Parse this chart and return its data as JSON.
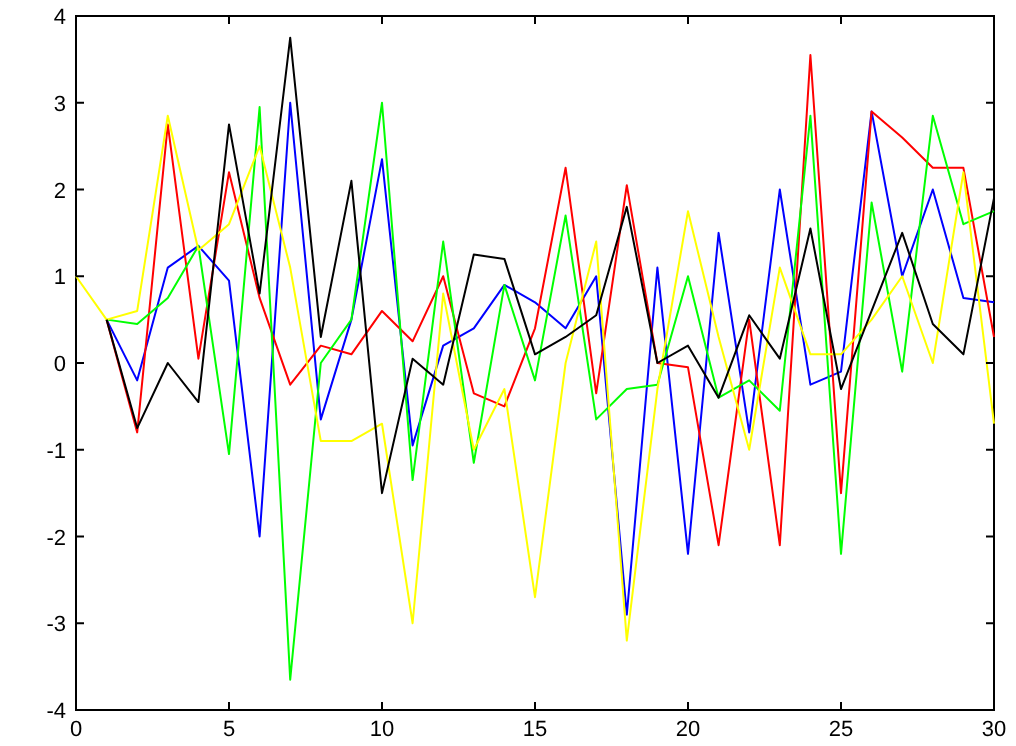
{
  "chart_data": {
    "type": "line",
    "x": [
      1,
      2,
      3,
      4,
      5,
      6,
      7,
      8,
      9,
      10,
      11,
      12,
      13,
      14,
      15,
      16,
      17,
      18,
      19,
      20,
      21,
      22,
      23,
      24,
      25,
      26,
      27,
      28,
      29,
      30
    ],
    "series": [
      {
        "color": "#0000ff",
        "values": [
          0.5,
          -0.2,
          1.1,
          1.35,
          0.95,
          -2.0,
          3.0,
          -0.65,
          0.5,
          2.35,
          -0.95,
          0.2,
          0.4,
          0.9,
          0.7,
          0.4,
          1.0,
          -2.9,
          1.1,
          -2.2,
          1.5,
          -0.8,
          2.0,
          -0.25,
          -0.1,
          2.9,
          1.0,
          2.0,
          0.75,
          0.7
        ]
      },
      {
        "color": "#ff0000",
        "values": [
          0.5,
          -0.8,
          2.75,
          0.05,
          2.2,
          0.75,
          -0.25,
          0.2,
          0.1,
          0.6,
          0.25,
          1.0,
          -0.35,
          -0.5,
          0.4,
          2.25,
          -0.35,
          2.05,
          0.0,
          -0.05,
          -2.1,
          0.5,
          -2.1,
          3.55,
          -1.5,
          2.9,
          2.6,
          2.25,
          2.25,
          0.3
        ]
      },
      {
        "color": "#00ff00",
        "values": [
          0.5,
          0.45,
          0.75,
          1.35,
          -1.05,
          2.95,
          -3.65,
          0.0,
          0.5,
          3.0,
          -1.35,
          1.4,
          -1.15,
          0.9,
          -0.2,
          1.7,
          -0.65,
          -0.3,
          -0.25,
          1.0,
          -0.4,
          -0.2,
          -0.55,
          2.85,
          -2.2,
          1.85,
          -0.1,
          2.85,
          1.6,
          1.75
        ]
      },
      {
        "color": "#ffff00",
        "x": [
          0,
          1,
          2,
          3,
          4,
          5,
          6,
          7,
          8,
          9,
          10,
          11,
          12,
          13,
          14,
          15,
          16,
          17,
          18,
          19,
          20,
          21,
          22,
          23,
          24,
          25,
          26,
          27,
          28,
          29,
          30
        ],
        "values": [
          1.0,
          0.5,
          0.6,
          2.85,
          1.3,
          1.6,
          2.5,
          1.1,
          -0.9,
          -0.9,
          -0.7,
          -3.0,
          0.8,
          -1.0,
          -0.3,
          -2.7,
          0.0,
          1.4,
          -3.2,
          -0.3,
          1.75,
          0.3,
          -1.0,
          1.1,
          0.1,
          0.1,
          0.5,
          1.0,
          0.0,
          2.2,
          -0.7
        ]
      },
      {
        "color": "#000000",
        "values": [
          0.5,
          -0.75,
          0.0,
          -0.45,
          2.75,
          0.8,
          3.75,
          0.3,
          2.1,
          -1.5,
          0.05,
          -0.25,
          1.25,
          1.2,
          0.1,
          0.3,
          0.55,
          1.8,
          0.0,
          0.2,
          -0.4,
          0.55,
          0.05,
          1.55,
          -0.3,
          0.6,
          1.5,
          0.45,
          0.1,
          1.9
        ]
      }
    ],
    "xlim": [
      0,
      30
    ],
    "xticks": [
      0,
      5,
      10,
      15,
      20,
      25,
      30
    ],
    "ylim": [
      -4,
      4
    ],
    "yticks": [
      -4,
      -3,
      -2,
      -1,
      0,
      1,
      2,
      3,
      4
    ],
    "grid": false,
    "marker": "none",
    "line_style": "solid"
  }
}
